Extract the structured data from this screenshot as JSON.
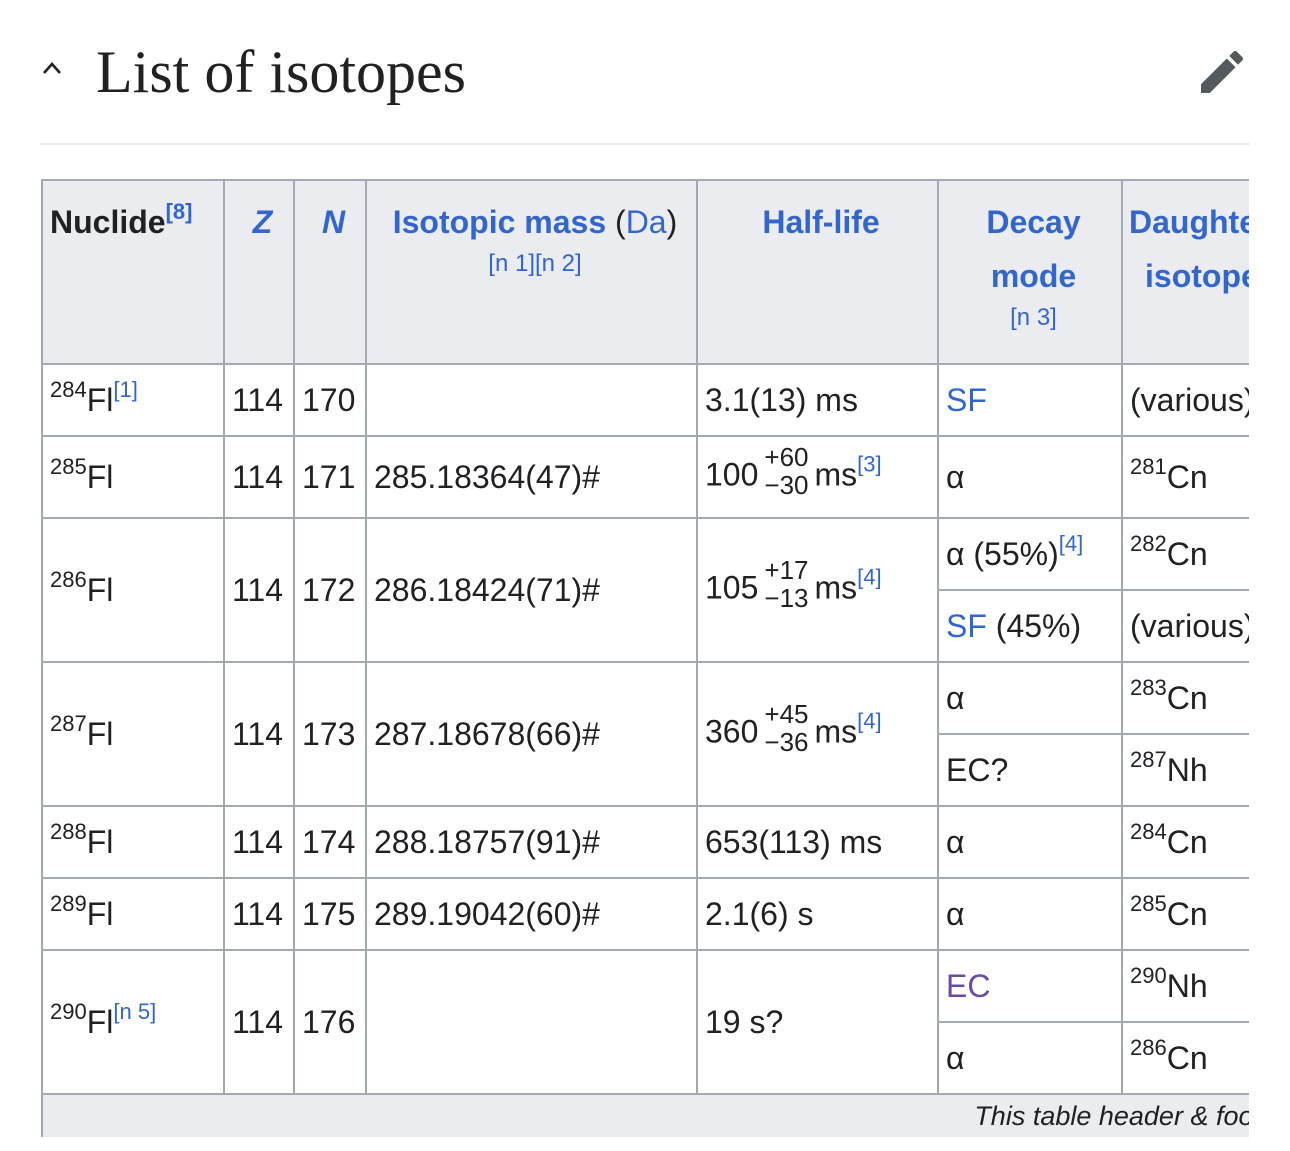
{
  "section": {
    "title": "List of isotopes"
  },
  "table": {
    "headers": {
      "nuclide": "Nuclide",
      "nuclide_ref": "[8]",
      "z": "Z",
      "n": "N",
      "mass": "Isotopic mass",
      "mass_unit_open": " (",
      "mass_unit": "Da",
      "mass_unit_close": ")",
      "mass_notes": "[n 1][n 2]",
      "halflife": "Half-life",
      "decay_line1": "Decay",
      "decay_line2": "mode",
      "decay_note": "[n 3]",
      "daughter_line1": "Daughter",
      "daughter_line2": "isotope"
    },
    "rows": {
      "r284": {
        "mass_number": "284",
        "symbol": "Fl",
        "ref": "[1]",
        "z": "114",
        "n": "170",
        "mass": "",
        "halflife": "3.1(13) ms",
        "decay": "SF",
        "daughter_text": "(various)"
      },
      "r285": {
        "mass_number": "285",
        "symbol": "Fl",
        "z": "114",
        "n": "171",
        "mass": "285.18364(47)#",
        "halflife_value": "100",
        "halflife_plus": "+60",
        "halflife_minus": "−30",
        "halflife_unit": "ms",
        "halflife_ref": "[3]",
        "decay": "α",
        "daughter_mass": "281",
        "daughter_symbol": "Cn"
      },
      "r286": {
        "mass_number": "286",
        "symbol": "Fl",
        "z": "114",
        "n": "172",
        "mass": "286.18424(71)#",
        "halflife_value": "105",
        "halflife_plus": "+17",
        "halflife_minus": "−13",
        "halflife_unit": "ms",
        "halflife_ref": "[4]",
        "decay1": "α (55%)",
        "decay1_ref": "[4]",
        "daughter1_mass": "282",
        "daughter1_symbol": "Cn",
        "decay2_link": "SF",
        "decay2_pct": " (45%)",
        "daughter2_text": "(various)"
      },
      "r287": {
        "mass_number": "287",
        "symbol": "Fl",
        "z": "114",
        "n": "173",
        "mass": "287.18678(66)#",
        "halflife_value": "360",
        "halflife_plus": "+45",
        "halflife_minus": "−36",
        "halflife_unit": "ms",
        "halflife_ref": "[4]",
        "decay1": "α",
        "daughter1_mass": "283",
        "daughter1_symbol": "Cn",
        "decay2": "EC?",
        "daughter2_mass": "287",
        "daughter2_symbol": "Nh"
      },
      "r288": {
        "mass_number": "288",
        "symbol": "Fl",
        "z": "114",
        "n": "174",
        "mass": "288.18757(91)#",
        "halflife": "653(113) ms",
        "decay": "α",
        "daughter_mass": "284",
        "daughter_symbol": "Cn"
      },
      "r289": {
        "mass_number": "289",
        "symbol": "Fl",
        "z": "114",
        "n": "175",
        "mass": "289.19042(60)#",
        "halflife": "2.1(6) s",
        "decay": "α",
        "daughter_mass": "285",
        "daughter_symbol": "Cn"
      },
      "r290": {
        "mass_number": "290",
        "symbol": "Fl",
        "ref": "[n 5]",
        "z": "114",
        "n": "176",
        "mass": "",
        "halflife": "19 s?",
        "decay1": "EC",
        "daughter1_mass": "290",
        "daughter1_symbol": "Nh",
        "decay2": "α",
        "daughter2_mass": "286",
        "daughter2_symbol": "Cn"
      }
    },
    "footer": "This table header & footer"
  },
  "colors": {
    "link": "#3366cc",
    "visited_link": "#6b4ba1",
    "header_bg": "#eaecf0",
    "border": "#a2a9b1",
    "text": "#202122"
  },
  "icons": {
    "collapse": "chevron-up-icon",
    "edit": "pencil-icon"
  }
}
